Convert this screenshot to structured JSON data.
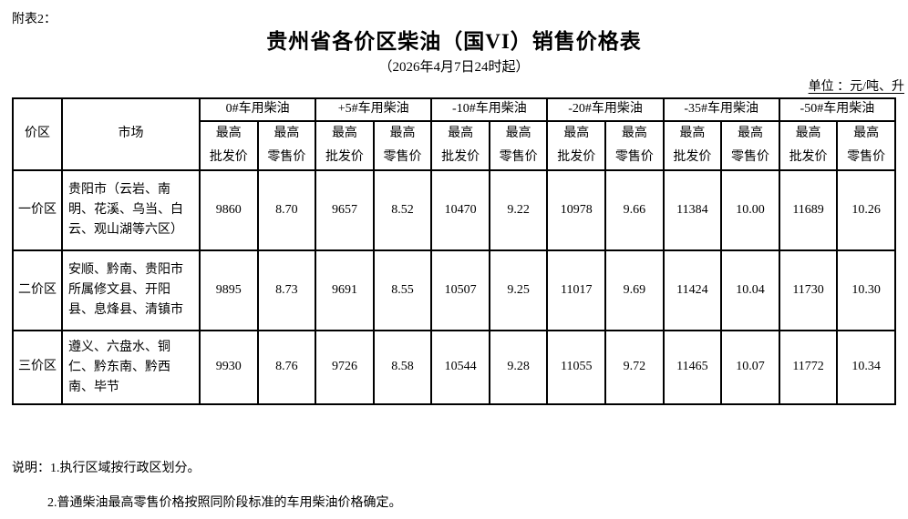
{
  "colors": {
    "background": "#ffffff",
    "text": "#000000",
    "table_border": "#000000"
  },
  "header": {
    "attachment_label": "附表2：",
    "title": "贵州省各价区柴油（国VI）销售价格表",
    "subtitle": "（2026年4月7日24时起）",
    "unit_label": "单位 ：元/吨、升"
  },
  "table": {
    "corner_headers": [
      "价区",
      "市场"
    ],
    "fuel_types": [
      "0#车用柴油",
      "+5#车用柴油",
      "-10#车用柴油",
      "-20#车用柴油",
      "-35#车用柴油",
      "-50#车用柴油"
    ],
    "sub_headers": {
      "line1": "最高",
      "wholesale_line2": "批发价",
      "retail_line2": "零售价"
    },
    "rows": [
      {
        "zone": "一价区",
        "market": "贵阳市（云岩、南明、花溪、乌当、白云、观山湖等六区）",
        "prices": [
          "9860",
          "8.70",
          "9657",
          "8.52",
          "10470",
          "9.22",
          "10978",
          "9.66",
          "11384",
          "10.00",
          "11689",
          "10.26"
        ]
      },
      {
        "zone": "二价区",
        "market": "安顺、黔南、贵阳市所属修文县、开阳县、息烽县、清镇市",
        "prices": [
          "9895",
          "8.73",
          "9691",
          "8.55",
          "10507",
          "9.25",
          "11017",
          "9.69",
          "11424",
          "10.04",
          "11730",
          "10.30"
        ]
      },
      {
        "zone": "三价区",
        "market": "遵义、六盘水、铜仁、黔东南、黔西南、毕节",
        "prices": [
          "9930",
          "8.76",
          "9726",
          "8.58",
          "10544",
          "9.28",
          "11055",
          "9.72",
          "11465",
          "10.07",
          "11772",
          "10.34"
        ]
      }
    ]
  },
  "notes": {
    "line1": "说明：1.执行区域按行政区划分。",
    "line2": "2.普通柴油最高零售价格按照同阶段标准的车用柴油价格确定。"
  }
}
